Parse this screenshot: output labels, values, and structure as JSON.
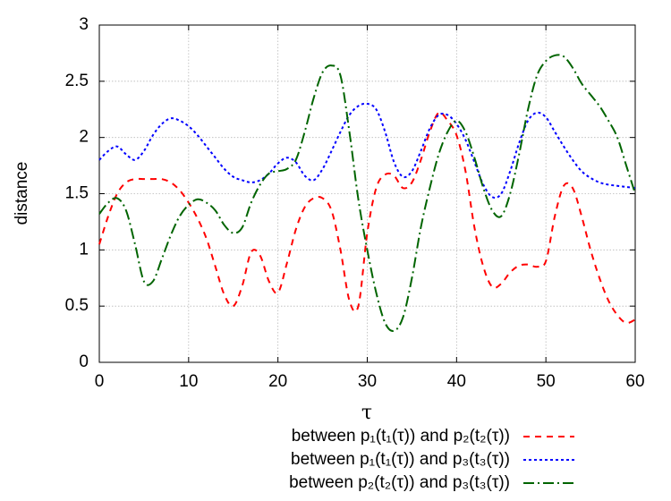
{
  "chart_data": {
    "type": "line",
    "xlabel": "τ",
    "ylabel": "distance",
    "x": [
      0,
      1,
      2,
      3,
      4,
      5,
      6,
      7,
      8,
      9,
      10,
      11,
      12,
      13,
      14,
      15,
      16,
      17,
      18,
      19,
      20,
      21,
      22,
      23,
      24,
      25,
      26,
      27,
      28,
      29,
      30,
      31,
      32,
      33,
      34,
      35,
      36,
      37,
      38,
      39,
      40,
      41,
      42,
      43,
      44,
      45,
      46,
      47,
      48,
      49,
      50,
      51,
      52,
      53,
      54,
      55,
      56,
      57,
      58,
      59,
      60
    ],
    "series": [
      {
        "name": "between p₁(t₁(τ)) and p₂(t₂(τ))",
        "color": "#ff0000",
        "dash": "7 6",
        "values": [
          1.05,
          1.3,
          1.5,
          1.6,
          1.63,
          1.63,
          1.63,
          1.63,
          1.6,
          1.53,
          1.42,
          1.28,
          1.1,
          0.85,
          0.6,
          0.5,
          0.68,
          0.98,
          0.95,
          0.72,
          0.62,
          0.88,
          1.18,
          1.38,
          1.46,
          1.46,
          1.35,
          1.0,
          0.55,
          0.5,
          1.15,
          1.55,
          1.67,
          1.66,
          1.55,
          1.6,
          1.8,
          2.05,
          2.22,
          2.15,
          2.02,
          1.7,
          1.2,
          0.85,
          0.67,
          0.7,
          0.8,
          0.86,
          0.87,
          0.85,
          0.9,
          1.3,
          1.57,
          1.55,
          1.3,
          1.0,
          0.75,
          0.55,
          0.42,
          0.35,
          0.38
        ]
      },
      {
        "name": "between p₁(t₁(τ)) and p₃(t₃(τ))",
        "color": "#0000ff",
        "dash": "3 3",
        "values": [
          1.8,
          1.88,
          1.92,
          1.85,
          1.8,
          1.88,
          2.02,
          2.12,
          2.17,
          2.15,
          2.1,
          2.02,
          1.92,
          1.82,
          1.72,
          1.65,
          1.62,
          1.6,
          1.62,
          1.68,
          1.77,
          1.82,
          1.78,
          1.66,
          1.62,
          1.72,
          1.88,
          2.05,
          2.2,
          2.28,
          2.3,
          2.25,
          2.05,
          1.78,
          1.65,
          1.7,
          1.88,
          2.08,
          2.2,
          2.2,
          2.12,
          1.98,
          1.78,
          1.58,
          1.47,
          1.5,
          1.7,
          1.95,
          2.15,
          2.22,
          2.18,
          2.05,
          1.92,
          1.8,
          1.7,
          1.64,
          1.6,
          1.58,
          1.57,
          1.56,
          1.55
        ]
      },
      {
        "name": "between p₂(t₂(τ)) and p₃(t₃(τ))",
        "color": "#006400",
        "dash": "12 4 2 4",
        "values": [
          1.32,
          1.42,
          1.46,
          1.35,
          1.05,
          0.72,
          0.72,
          0.92,
          1.13,
          1.3,
          1.4,
          1.45,
          1.42,
          1.35,
          1.22,
          1.15,
          1.2,
          1.42,
          1.58,
          1.68,
          1.7,
          1.72,
          1.8,
          2.05,
          2.35,
          2.58,
          2.64,
          2.55,
          2.05,
          1.45,
          1.0,
          0.62,
          0.35,
          0.28,
          0.4,
          0.75,
          1.2,
          1.55,
          1.85,
          2.05,
          2.15,
          2.05,
          1.82,
          1.55,
          1.35,
          1.3,
          1.5,
          1.85,
          2.25,
          2.55,
          2.68,
          2.73,
          2.72,
          2.62,
          2.48,
          2.38,
          2.28,
          2.15,
          2.0,
          1.75,
          1.5
        ]
      }
    ],
    "xlim": [
      0,
      60
    ],
    "xticks": [
      0,
      10,
      20,
      30,
      40,
      50,
      60
    ],
    "ylim": [
      0,
      3
    ],
    "yticks": [
      0,
      0.5,
      1,
      1.5,
      2,
      2.5,
      3
    ],
    "grid": true
  }
}
